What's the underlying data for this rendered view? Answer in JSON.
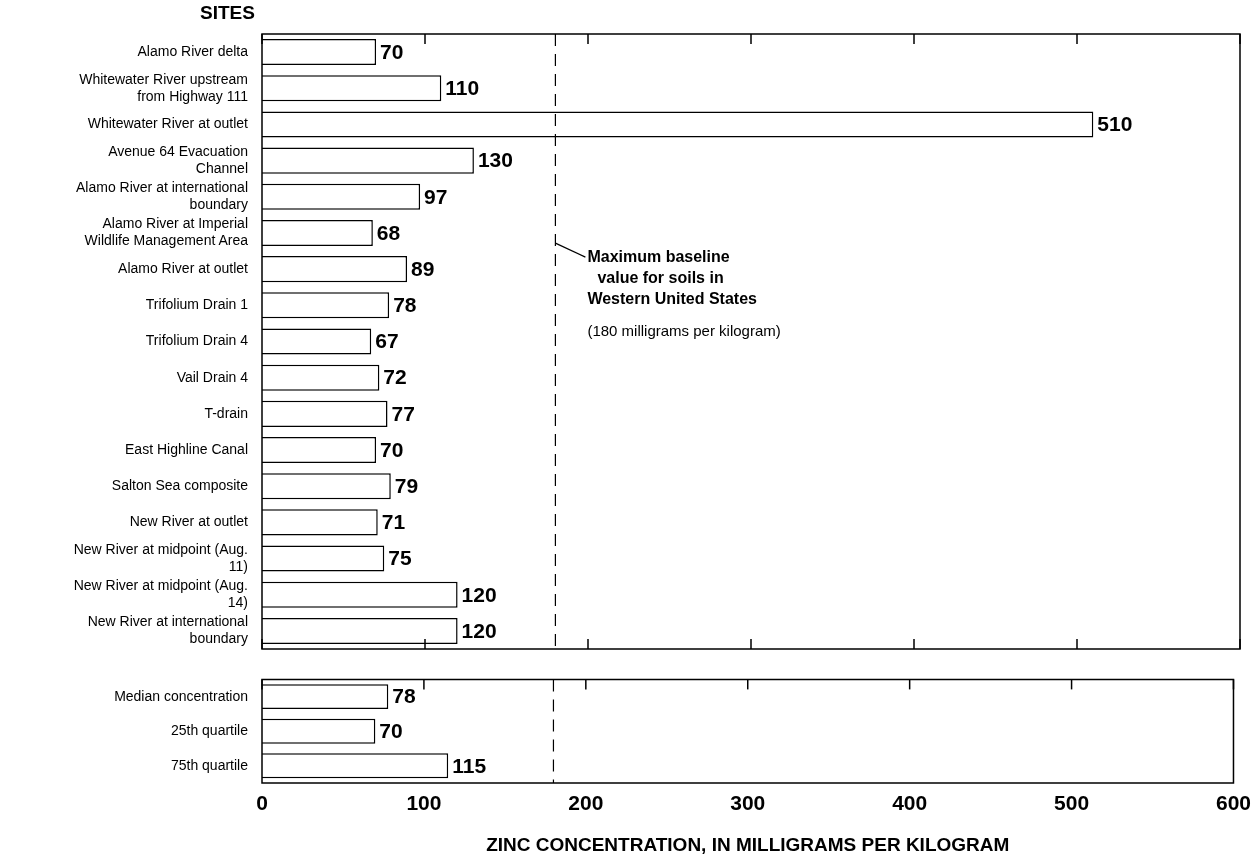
{
  "chart_data": [
    {
      "type": "bar",
      "orientation": "horizontal",
      "ylabel": "SITES",
      "categories": [
        "Alamo River delta",
        "Whitewater River upstream from Highway 111",
        "Whitewater River at outlet",
        "Avenue 64 Evacuation Channel",
        "Alamo River at international boundary",
        "Alamo River at Imperial Wildlife Management Area",
        "Alamo River at outlet",
        "Trifolium Drain 1",
        "Trifolium Drain 4",
        "Vail Drain 4",
        "T-drain",
        "East Highline Canal",
        "Salton Sea composite",
        "New River at outlet",
        "New River at midpoint (Aug. 11)",
        "New River at midpoint (Aug. 14)",
        "New River at international boundary"
      ],
      "values": [
        70,
        110,
        510,
        130,
        97,
        68,
        89,
        78,
        67,
        72,
        77,
        70,
        79,
        71,
        75,
        120,
        120
      ],
      "color": "#ffffff",
      "data_labels": true,
      "xlim": [
        0,
        600
      ],
      "xticks": [
        {
          "value": 0,
          "label": null
        },
        {
          "value": 100,
          "label": null
        },
        {
          "value": 200,
          "label": null
        },
        {
          "value": 300,
          "label": null
        },
        {
          "value": 400,
          "label": null
        },
        {
          "value": 500,
          "label": null
        },
        {
          "value": 600,
          "label": null
        }
      ],
      "tick_labels": "y",
      "grid": false,
      "legend": false,
      "ref_lines": [
        {
          "axis": "x",
          "value": 180,
          "label": "Maximum baseline value for soils in Western United States",
          "line_style": "dashed"
        }
      ],
      "annotations": [
        "(180 milligrams per kilogram)"
      ]
    },
    {
      "type": "bar",
      "orientation": "horizontal",
      "xlabel": "ZINC CONCENTRATION, IN MILLIGRAMS PER KILOGRAM",
      "categories": [
        "Median concentration",
        "25th quartile",
        "75th quartile"
      ],
      "values": [
        78,
        70,
        115
      ],
      "color": "#ffffff",
      "data_labels": true,
      "xlim": [
        0,
        600
      ],
      "xticks": [
        0,
        100,
        200,
        300,
        400,
        500,
        600
      ],
      "grid": false,
      "legend": false,
      "ref_lines": [
        {
          "axis": "x",
          "value": 180,
          "line_style": "dashed"
        }
      ]
    }
  ]
}
